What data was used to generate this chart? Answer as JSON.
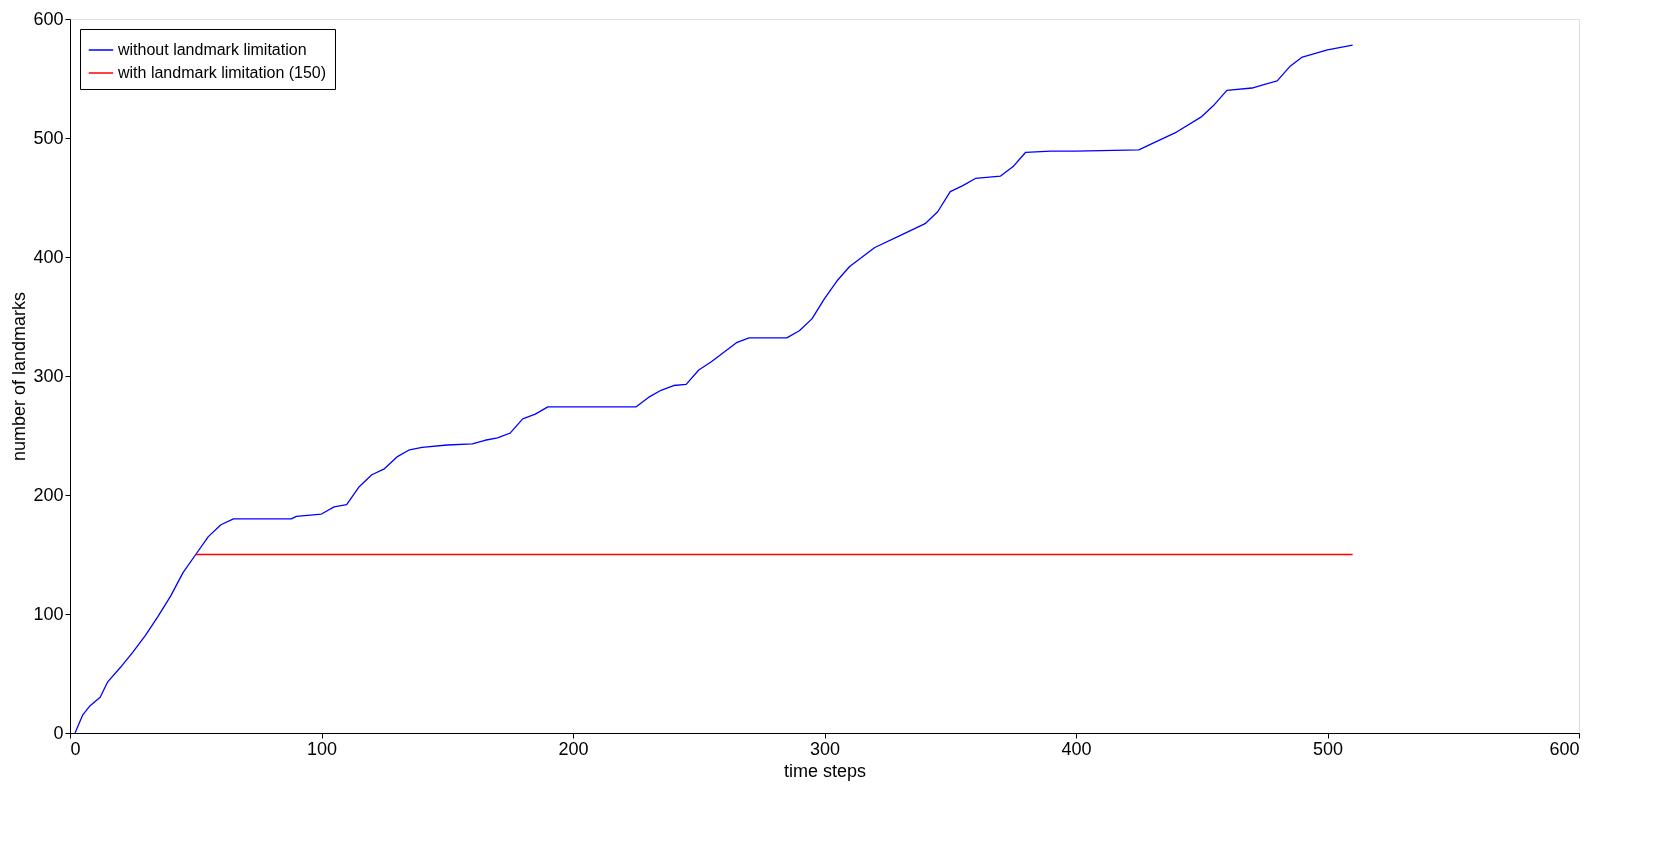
{
  "chart_data": {
    "type": "line",
    "xlabel": "time steps",
    "ylabel": "number of landmarks",
    "xlim": [
      0,
      600
    ],
    "xticks": [
      0,
      100,
      200,
      300,
      400,
      500,
      600
    ],
    "ylim": [
      0,
      600
    ],
    "yticks": [
      0,
      100,
      200,
      300,
      400,
      500,
      600
    ],
    "grid": false,
    "legend": "top left",
    "line_style": "solid",
    "marker": "none",
    "series": [
      {
        "name": "without landmark limitation",
        "color": "#0000ff",
        "x": [
          2,
          5,
          8,
          12,
          15,
          20,
          25,
          30,
          35,
          40,
          45,
          50,
          55,
          60,
          65,
          88,
          90,
          100,
          105,
          110,
          115,
          120,
          125,
          130,
          135,
          140,
          150,
          160,
          165,
          170,
          175,
          180,
          185,
          190,
          200,
          225,
          230,
          235,
          240,
          245,
          250,
          255,
          260,
          265,
          270,
          285,
          290,
          295,
          300,
          305,
          310,
          315,
          320,
          330,
          340,
          345,
          350,
          355,
          360,
          370,
          375,
          380,
          390,
          400,
          425,
          430,
          440,
          450,
          455,
          460,
          470,
          475,
          480,
          485,
          490,
          500,
          510
        ],
        "values": [
          0,
          15,
          23,
          30,
          43,
          55,
          68,
          82,
          98,
          115,
          135,
          150,
          165,
          175,
          180,
          180,
          182,
          184,
          190,
          192,
          207,
          217,
          222,
          232,
          238,
          240,
          242,
          243,
          246,
          248,
          252,
          264,
          268,
          274,
          274,
          274,
          282,
          288,
          292,
          293,
          305,
          312,
          320,
          328,
          332,
          332,
          338,
          348,
          365,
          380,
          392,
          400,
          408,
          418,
          428,
          438,
          455,
          460,
          466,
          468,
          476,
          488,
          489,
          489,
          490,
          495,
          505,
          518,
          528,
          540,
          542,
          545,
          548,
          560,
          568,
          574,
          578
        ]
      },
      {
        "name": "with landmark limitation (150)",
        "color": "#ff0000",
        "x": [
          50,
          510
        ],
        "values": [
          150,
          150
        ]
      }
    ]
  }
}
